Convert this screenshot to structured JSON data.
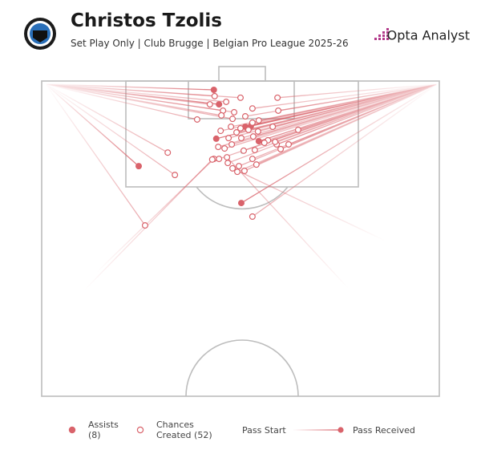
{
  "chart_data": {
    "type": "pass-map",
    "title": "Christos Tzolis",
    "subtitle": "Set Play Only | Club Brugge | Belgian Pro League 2025-26",
    "brand": "Opta Analyst",
    "xlim": [
      0,
      100
    ],
    "ylim": [
      0,
      100
    ],
    "legend": {
      "start": "Pass Start",
      "end": "Pass Received"
    },
    "series": [
      {
        "name": "Assists (8)",
        "color": "#d9636b",
        "filled": true,
        "start_x": [
          1,
          1,
          99.5,
          99.5,
          99.5,
          99.5,
          1,
          99.5
        ],
        "start_y": [
          1,
          1,
          1,
          1,
          1,
          1,
          1,
          1
        ],
        "end_x": [
          43.3,
          44.6,
          51.2,
          52.6,
          43.9,
          54.6,
          24.4,
          50.2
        ],
        "end_y": [
          2.8,
          7.4,
          14.5,
          14.3,
          18.3,
          19.1,
          27.0,
          38.7
        ]
      },
      {
        "name": "Chances Created (52)",
        "color": "#d9636b",
        "filled": false,
        "start_x": [
          1,
          1,
          1,
          99.5,
          99.5,
          1,
          99.5,
          1,
          1,
          99.5,
          99.5,
          99.5,
          99.5,
          99.5,
          99.5,
          99.5,
          99.5,
          99.5,
          99.5,
          99.5,
          99.5,
          99.5,
          99.5,
          99.5,
          13.7,
          99.5,
          77.2,
          99.5,
          86.3,
          99.5,
          10.7,
          1,
          1,
          1,
          99.5,
          99.5,
          99.5,
          99.5,
          1,
          1,
          99.5,
          99.5,
          1,
          99.5,
          99.5,
          99.5,
          99.5,
          99.5,
          99.5,
          99.5,
          99.5,
          99.5
        ],
        "start_y": [
          1,
          1,
          1,
          1,
          1,
          1,
          1,
          1,
          1,
          1,
          1,
          1,
          1,
          1,
          1,
          1,
          1,
          1,
          1,
          1,
          1,
          1,
          1,
          1,
          60.8,
          1,
          65.9,
          1,
          50.6,
          1,
          66.4,
          1,
          1,
          1,
          1,
          1,
          1,
          1,
          1,
          1,
          1,
          1,
          1,
          1,
          1,
          1,
          1,
          1,
          1,
          1,
          1,
          1
        ],
        "end_x": [
          42.3,
          46.4,
          50.0,
          59.3,
          53.0,
          45.6,
          59.5,
          39.1,
          48.0,
          54.6,
          47.6,
          50.0,
          53.0,
          64.5,
          49.0,
          47.0,
          50.2,
          56.9,
          59.1,
          62.1,
          53.6,
          46.0,
          44.4,
          50.8,
          43.3,
          44.6,
          46.6,
          53.0,
          48.0,
          49.6,
          42.9,
          31.7,
          33.5,
          26.0,
          53.0,
          54.4,
          58.1,
          52.0,
          45.2,
          48.4,
          51.2,
          56.0,
          43.5,
          47.8,
          54.0,
          45.0,
          49.2,
          51.0,
          46.8,
          53.2,
          60.1,
          58.7
        ],
        "end_y": [
          7.4,
          6.6,
          5.3,
          5.3,
          8.7,
          9.4,
          9.4,
          12.2,
          12.0,
          12.5,
          14.5,
          15.0,
          13.2,
          15.5,
          16.3,
          18.1,
          18.1,
          18.8,
          20.1,
          20.1,
          21.9,
          21.4,
          20.9,
          22.1,
          24.7,
          24.7,
          24.2,
          24.7,
          27.7,
          27.0,
          24.9,
          22.7,
          29.8,
          45.8,
          43.0,
          16.0,
          14.5,
          15.5,
          10.9,
          9.9,
          11.2,
          19.6,
          4.8,
          20.1,
          26.5,
          15.8,
          28.8,
          28.5,
          26.0,
          17.6,
          21.6,
          19.3
        ]
      }
    ]
  }
}
